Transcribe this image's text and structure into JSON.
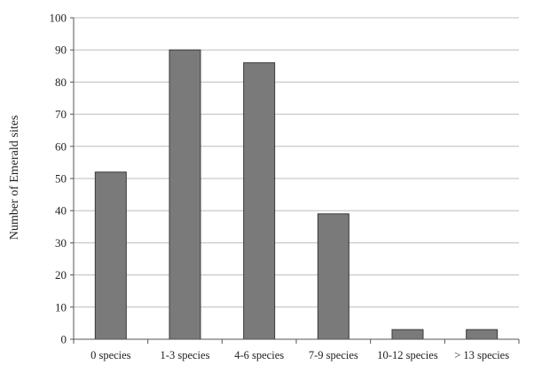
{
  "chart_data": {
    "type": "bar",
    "title": "",
    "xlabel": "",
    "ylabel": "Number of Emerald sites",
    "categories": [
      "0 species",
      "1-3 species",
      "4-6 species",
      "7-9 species",
      "10-12 species",
      "> 13 species"
    ],
    "values": [
      52,
      90,
      86,
      39,
      3,
      3
    ],
    "ylim": [
      0,
      100
    ],
    "yticks": [
      0,
      10,
      20,
      30,
      40,
      50,
      60,
      70,
      80,
      90,
      100
    ],
    "grid": true,
    "legend": "none",
    "colors": {
      "bar_fill": "#7a7a7a",
      "bar_stroke": "#3a3a3a",
      "grid": "#bdbdbd",
      "axis": "#555555"
    }
  }
}
